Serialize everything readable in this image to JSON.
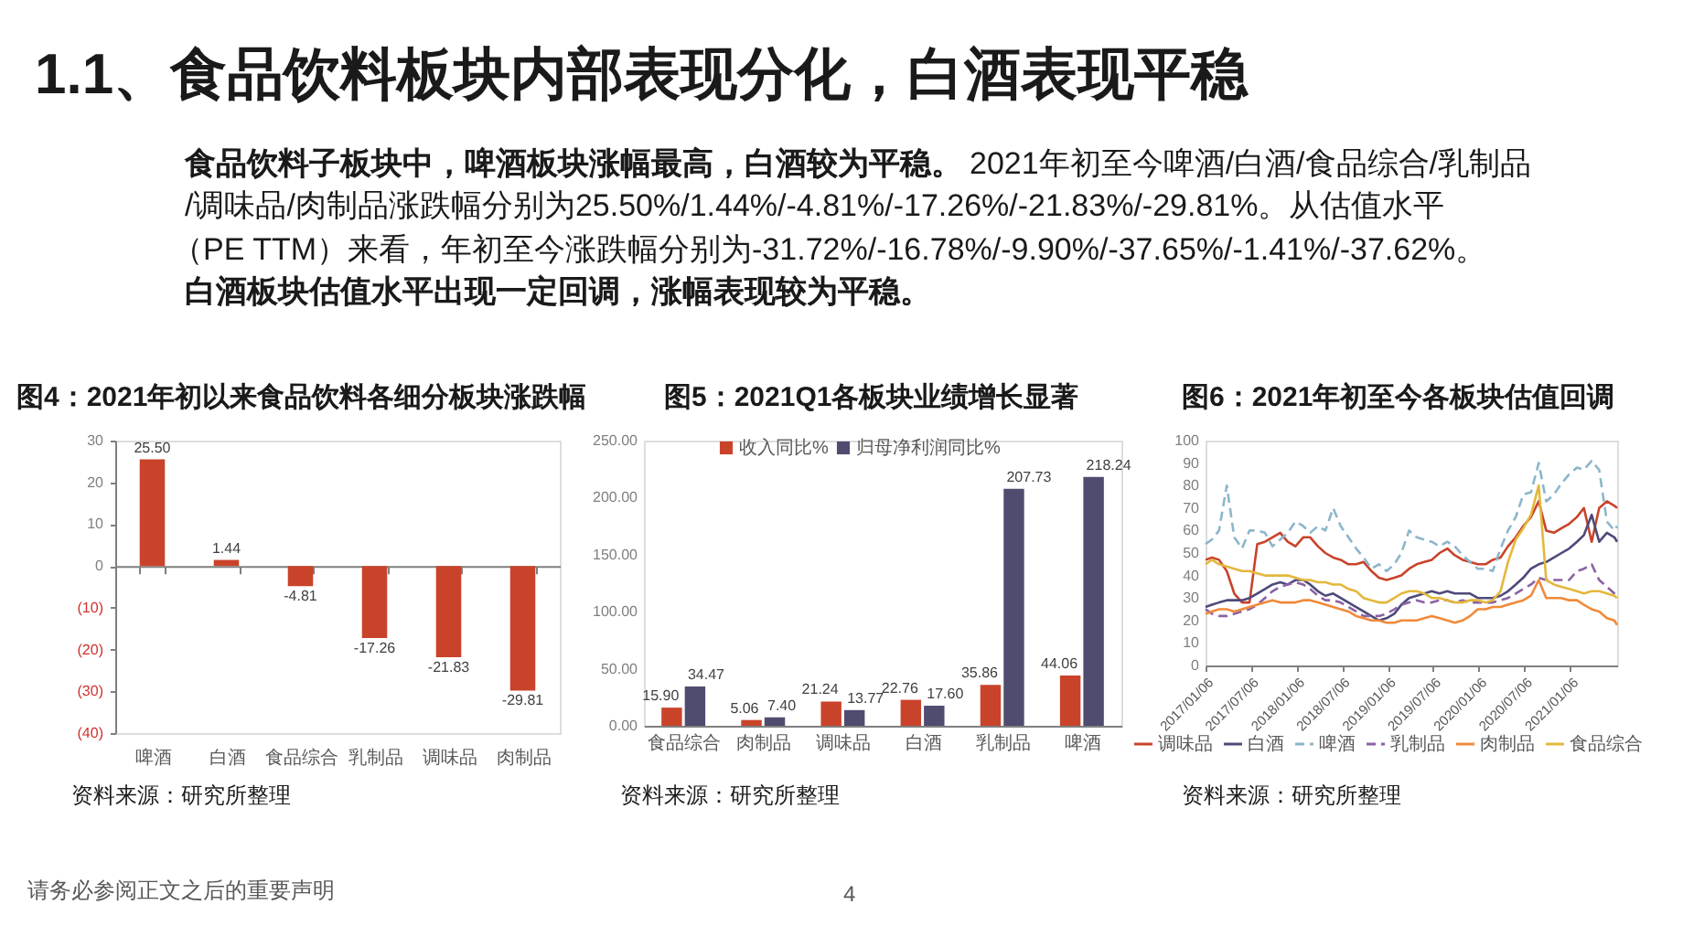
{
  "chart_data": [
    {
      "type": "other",
      "title": "1.1、食品饮料板块内部表现分化，白酒表现平稳",
      "annotations": [
        "食品饮料子板块中，啤酒板块涨幅最高，白酒较为平稳。",
        "2021年初至今啤酒/白酒/食品综合/乳制品",
        "/调味品/肉制品涨跌幅分别为25.50%/1.44%/-4.81%/-17.26%/-21.83%/-29.81%。从估值水平",
        "（PE TTM）来看，年初至今涨跌幅分别为-31.72%/-16.78%/-9.90%/-37.65%/-1.41%/-37.62%。",
        "白酒板块估值水平出现一定回调，涨幅表现较为平稳。",
        "请务必参阅正文之后的重要声明",
        "4"
      ]
    },
    {
      "type": "bar",
      "title": "图4：2021年初以来食品饮料各细分板块涨跌幅",
      "categories": [
        "啤酒",
        "白酒",
        "食品综合",
        "乳制品",
        "调味品",
        "肉制品"
      ],
      "values": [
        25.5,
        1.44,
        -4.81,
        -17.26,
        -21.83,
        -29.81
      ],
      "value_labels": [
        "25.50",
        "1.44",
        "-4.81",
        "-17.26",
        "-21.83",
        "-29.81"
      ],
      "color": "#c9432a",
      "ylim": [
        -40,
        30
      ],
      "yticks": [
        30,
        20,
        10,
        0,
        {
          "value": -10,
          "label": "(10)"
        },
        {
          "value": -20,
          "label": "(20)"
        },
        {
          "value": -30,
          "label": "(30)"
        },
        {
          "value": -40,
          "label": "(40)"
        }
      ],
      "annotations": [
        "资料来源：研究所整理"
      ]
    },
    {
      "type": "bar",
      "title": "图5：2021Q1各板块业绩增长显著",
      "categories": [
        "食品综合",
        "肉制品",
        "调味品",
        "白酒",
        "乳制品",
        "啤酒"
      ],
      "series": [
        {
          "name": "收入同比%",
          "color": "#c9432a",
          "values": [
            15.9,
            5.06,
            21.24,
            22.76,
            35.86,
            44.06
          ],
          "value_labels": [
            "15.90",
            "5.06",
            "21.24",
            "22.76",
            "35.86",
            "44.06"
          ]
        },
        {
          "name": "归母净利润同比%",
          "color": "#504c70",
          "values": [
            34.47,
            7.4,
            13.77,
            17.6,
            207.73,
            218.24
          ],
          "value_labels": [
            "34.47",
            "7.40",
            "13.77",
            "17.60",
            "207.73",
            "218.24"
          ]
        }
      ],
      "ylim": [
        0,
        250
      ],
      "yticks": [
        {
          "value": 0,
          "label": "0.00"
        },
        {
          "value": 50,
          "label": "50.00"
        },
        {
          "value": 100,
          "label": "100.00"
        },
        {
          "value": 150,
          "label": "150.00"
        },
        {
          "value": 200,
          "label": "200.00"
        },
        {
          "value": 250,
          "label": "250.00"
        }
      ],
      "legend": "top",
      "annotations": [
        "资料来源：研究所整理"
      ]
    },
    {
      "type": "line",
      "title": "图6：2021年初至今各板块估值回调",
      "x": [
        "2017-01-06",
        "2017-02-01",
        "2017-03-01",
        "2017-04-01",
        "2017-05-01",
        "2017-06-01",
        "2017-07-01",
        "2017-08-01",
        "2017-09-01",
        "2017-10-01",
        "2017-11-01",
        "2017-12-01",
        "2018-01-01",
        "2018-02-01",
        "2018-03-01",
        "2018-04-01",
        "2018-05-01",
        "2018-06-01",
        "2018-07-01",
        "2018-08-01",
        "2018-09-01",
        "2018-10-01",
        "2018-11-01",
        "2018-12-01",
        "2019-01-01",
        "2019-02-01",
        "2019-03-01",
        "2019-04-01",
        "2019-05-01",
        "2019-06-01",
        "2019-07-01",
        "2019-08-01",
        "2019-09-01",
        "2019-10-01",
        "2019-11-01",
        "2019-12-01",
        "2020-01-01",
        "2020-02-01",
        "2020-03-01",
        "2020-04-01",
        "2020-05-01",
        "2020-06-01",
        "2020-07-01",
        "2020-08-01",
        "2020-09-01",
        "2020-10-01",
        "2020-11-01",
        "2020-12-01",
        "2021-01-01",
        "2021-02-01",
        "2021-03-01",
        "2021-04-01",
        "2021-05-01",
        "2021-06-01",
        "2021-07-01",
        "2021-07-12"
      ],
      "series": [
        {
          "name": "调味品",
          "color": "#c9432a",
          "line_style": "solid",
          "values": [
            47,
            48,
            47,
            42,
            32,
            28,
            28,
            54,
            55,
            57,
            59,
            55,
            53,
            57,
            57,
            53,
            50,
            48,
            47,
            45,
            45,
            46,
            42,
            39,
            38,
            39,
            40,
            43,
            45,
            46,
            47,
            50,
            52,
            49,
            47,
            46,
            45,
            45,
            47,
            48,
            53,
            57,
            62,
            66,
            73,
            60,
            59,
            61,
            63,
            66,
            70,
            55,
            70,
            73,
            71,
            70
          ]
        },
        {
          "name": "白酒",
          "color": "#4e4a7a",
          "line_style": "solid",
          "values": [
            26,
            27,
            28,
            29,
            29,
            29,
            30,
            32,
            34,
            36,
            37,
            36,
            38,
            38,
            36,
            33,
            31,
            32,
            30,
            28,
            26,
            24,
            22,
            20,
            21,
            23,
            27,
            30,
            31,
            32,
            33,
            32,
            33,
            32,
            32,
            32,
            30,
            30,
            30,
            31,
            33,
            36,
            39,
            43,
            45,
            46,
            48,
            50,
            52,
            55,
            58,
            67,
            55,
            59,
            57,
            55
          ]
        },
        {
          "name": "啤酒",
          "color": "#8cb6cb",
          "line_style": "dashed",
          "values": [
            54,
            56,
            60,
            80,
            57,
            52,
            60,
            60,
            59,
            53,
            56,
            59,
            64,
            62,
            59,
            62,
            60,
            70,
            62,
            57,
            52,
            48,
            43,
            45,
            42,
            45,
            50,
            60,
            57,
            56,
            55,
            53,
            55,
            53,
            49,
            46,
            43,
            43,
            42,
            52,
            60,
            66,
            76,
            77,
            90,
            73,
            76,
            81,
            85,
            88,
            87,
            91,
            87,
            64,
            60,
            62
          ]
        },
        {
          "name": "乳制品",
          "color": "#8a62a3",
          "line_style": "dashed",
          "values": [
            25,
            23,
            22,
            22,
            23,
            24,
            25,
            27,
            30,
            33,
            35,
            36,
            37,
            36,
            34,
            31,
            29,
            29,
            28,
            26,
            24,
            22,
            22,
            22,
            23,
            25,
            27,
            28,
            29,
            28,
            28,
            29,
            29,
            28,
            29,
            28,
            28,
            28,
            28,
            29,
            30,
            32,
            34,
            36,
            39,
            38,
            38,
            38,
            38,
            42,
            43,
            45,
            38,
            35,
            32,
            30
          ]
        },
        {
          "name": "肉制品",
          "color": "#f08a3a",
          "line_style": "solid",
          "values": [
            23,
            24,
            25,
            25,
            24,
            25,
            26,
            27,
            28,
            29,
            28,
            28,
            28,
            29,
            29,
            28,
            27,
            26,
            25,
            24,
            22,
            21,
            20,
            20,
            19,
            19,
            20,
            20,
            20,
            21,
            22,
            21,
            20,
            19,
            20,
            22,
            25,
            25,
            26,
            26,
            27,
            28,
            29,
            31,
            38,
            30,
            30,
            30,
            29,
            29,
            27,
            25,
            24,
            21,
            20,
            18
          ]
        },
        {
          "name": "食品综合",
          "color": "#e3b83c",
          "line_style": "solid",
          "values": [
            45,
            47,
            45,
            44,
            43,
            42,
            42,
            41,
            40,
            40,
            40,
            40,
            39,
            38,
            38,
            37,
            37,
            36,
            36,
            34,
            33,
            30,
            29,
            28,
            28,
            30,
            32,
            33,
            33,
            32,
            30,
            30,
            29,
            28,
            28,
            29,
            29,
            28,
            29,
            33,
            46,
            56,
            61,
            67,
            80,
            38,
            36,
            35,
            34,
            33,
            32,
            33,
            33,
            32,
            31,
            30
          ]
        }
      ],
      "xlim": [
        "2017-01-06",
        "2021-07-12"
      ],
      "xticks": [
        {
          "value": "2017-01-06",
          "label": "2017/01/06"
        },
        {
          "value": "2017-07-06",
          "label": "2017/07/06"
        },
        {
          "value": "2018-01-06",
          "label": "2018/01/06"
        },
        {
          "value": "2018-07-06",
          "label": "2018/07/06"
        },
        {
          "value": "2019-01-06",
          "label": "2019/01/06"
        },
        {
          "value": "2019-07-06",
          "label": "2019/07/06"
        },
        {
          "value": "2020-01-06",
          "label": "2020/01/06"
        },
        {
          "value": "2020-07-06",
          "label": "2020/07/06"
        },
        {
          "value": "2021-01-06",
          "label": "2021/01/06"
        }
      ],
      "ylim": [
        0,
        100
      ],
      "yticks": [
        0,
        10,
        20,
        30,
        40,
        50,
        60,
        70,
        80,
        90,
        100
      ],
      "legend": "bottom",
      "annotations": [
        "资料来源：研究所整理"
      ]
    }
  ]
}
